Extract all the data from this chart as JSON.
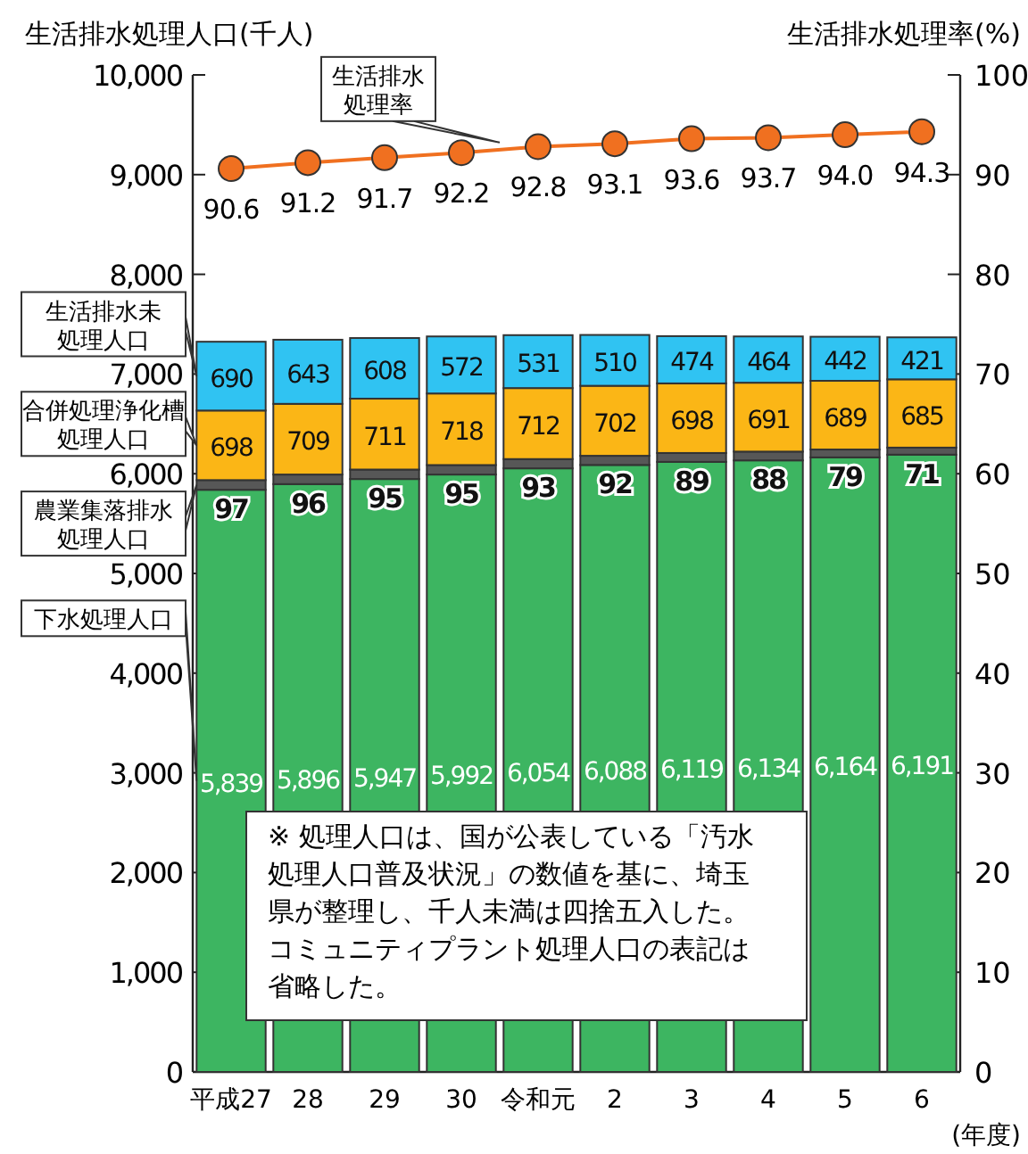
{
  "chart_data": {
    "type": "bar",
    "stacked": true,
    "title": "生活排水処理人口(千人)",
    "y2label": "生活排水処理率(%)",
    "xlabel": "(年度)",
    "categories": [
      "平成27",
      "28",
      "29",
      "30",
      "令和元",
      "2",
      "3",
      "4",
      "5",
      "6"
    ],
    "series": [
      {
        "name": "下水処理人口",
        "color": "#3db561",
        "values": [
          5839,
          5896,
          5947,
          5992,
          6054,
          6088,
          6119,
          6134,
          6164,
          6191
        ],
        "value_labels": [
          "5,839",
          "5,896",
          "5,947",
          "5,992",
          "6,054",
          "6,088",
          "6,119",
          "6,134",
          "6,164",
          "6,191"
        ]
      },
      {
        "name": "農業集落排水処理人口",
        "color": "#575757",
        "values": [
          97,
          96,
          95,
          95,
          93,
          92,
          89,
          88,
          79,
          71
        ]
      },
      {
        "name": "合併処理浄化槽処理人口",
        "color": "#fbb616",
        "values": [
          698,
          709,
          711,
          718,
          712,
          702,
          698,
          691,
          689,
          685
        ]
      },
      {
        "name": "生活排水未処理人口",
        "color": "#30c3f2",
        "values": [
          690,
          643,
          608,
          572,
          531,
          510,
          474,
          464,
          442,
          421
        ]
      },
      {
        "name": "生活排水処理率",
        "type": "line",
        "axis": "y2",
        "color": "#f07020",
        "values": [
          90.6,
          91.2,
          91.7,
          92.2,
          92.8,
          93.1,
          93.6,
          93.7,
          94.0,
          94.3
        ],
        "value_labels": [
          "90.6",
          "91.2",
          "91.7",
          "92.2",
          "92.8",
          "93.1",
          "93.6",
          "93.7",
          "94.0",
          "94.3"
        ]
      }
    ],
    "ylim": [
      0,
      10000
    ],
    "yticks": [
      0,
      {
        "value": 1000,
        "label": "1,000"
      },
      {
        "value": 2000,
        "label": "2,000"
      },
      {
        "value": 3000,
        "label": "3,000"
      },
      {
        "value": 4000,
        "label": "4,000"
      },
      {
        "value": 5000,
        "label": "5,000"
      },
      {
        "value": 6000,
        "label": "6,000"
      },
      {
        "value": 7000,
        "label": "7,000"
      },
      {
        "value": 8000,
        "label": "8,000"
      },
      {
        "value": 9000,
        "label": "9,000"
      },
      {
        "value": 10000,
        "label": "10,000"
      }
    ],
    "y2lim": [
      0,
      100
    ],
    "y2ticks": [
      0,
      10,
      20,
      30,
      40,
      50,
      60,
      70,
      80,
      90,
      100
    ],
    "data_labels": true,
    "marker": "circle",
    "legend": "left",
    "annotations": [
      "※ 処理人口は、国が公表している「汚水処理人口普及状況」の数値を基に、埼玉県が整理し、千人未満は四捨五入した。コミュニティプラント処理人口の表記は省略した。"
    ]
  }
}
